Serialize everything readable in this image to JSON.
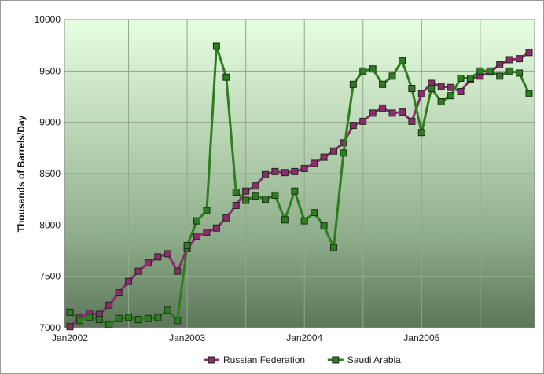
{
  "chart_data": {
    "type": "line",
    "title": "",
    "ylabel": "Thousands of Barrels/Day",
    "xlabel": "",
    "ylim": [
      7000,
      10000
    ],
    "yticks": [
      7000,
      7500,
      8000,
      8500,
      9000,
      9500,
      10000
    ],
    "y_tick_labels": [
      "7000",
      "7500",
      "8000",
      "8500",
      "9000",
      "9500",
      "10000"
    ],
    "x": [
      "2002-01",
      "2002-02",
      "2002-03",
      "2002-04",
      "2002-05",
      "2002-06",
      "2002-07",
      "2002-08",
      "2002-09",
      "2002-10",
      "2002-11",
      "2002-12",
      "2003-01",
      "2003-02",
      "2003-03",
      "2003-04",
      "2003-05",
      "2003-06",
      "2003-07",
      "2003-08",
      "2003-09",
      "2003-10",
      "2003-11",
      "2003-12",
      "2004-01",
      "2004-02",
      "2004-03",
      "2004-04",
      "2004-05",
      "2004-06",
      "2004-07",
      "2004-08",
      "2004-09",
      "2004-10",
      "2004-11",
      "2004-12",
      "2005-01",
      "2005-02",
      "2005-03",
      "2005-04",
      "2005-05",
      "2005-06",
      "2005-07",
      "2005-08",
      "2005-09",
      "2005-10",
      "2005-11",
      "2005-12"
    ],
    "x_tick_labels": [
      {
        "x": "2002-01",
        "label": "Jan2002"
      },
      {
        "x": "2003-01",
        "label": "Jan2003"
      },
      {
        "x": "2004-01",
        "label": "Jan2004"
      },
      {
        "x": "2005-01",
        "label": "Jan2005"
      }
    ],
    "grid": true,
    "legend_position": "bottom",
    "series": [
      {
        "name": "Russian Federation",
        "color": "#8b2c6e",
        "values": [
          7010,
          7100,
          7140,
          7130,
          7220,
          7340,
          7450,
          7550,
          7630,
          7690,
          7720,
          7550,
          7770,
          7890,
          7930,
          7970,
          8070,
          8190,
          8330,
          8380,
          8490,
          8520,
          8510,
          8520,
          8550,
          8600,
          8660,
          8720,
          8800,
          8970,
          9010,
          9090,
          9140,
          9090,
          9100,
          9010,
          9280,
          9380,
          9350,
          9340,
          9300,
          9420,
          9450,
          9490,
          9560,
          9610,
          9620,
          9680
        ]
      },
      {
        "name": "Saudi Arabia",
        "color": "#2e7d1e",
        "values": [
          7150,
          7070,
          7100,
          7080,
          7030,
          7090,
          7100,
          7080,
          7090,
          7100,
          7170,
          7070,
          7800,
          8040,
          8140,
          9740,
          9440,
          8320,
          8240,
          8280,
          8250,
          8290,
          8050,
          8330,
          8040,
          8120,
          7990,
          7780,
          8700,
          9370,
          9500,
          9520,
          9370,
          9450,
          9600,
          9330,
          8900,
          9330,
          9200,
          9260,
          9430,
          9430,
          9500,
          9500,
          9450,
          9500,
          9480,
          9280
        ]
      }
    ]
  }
}
